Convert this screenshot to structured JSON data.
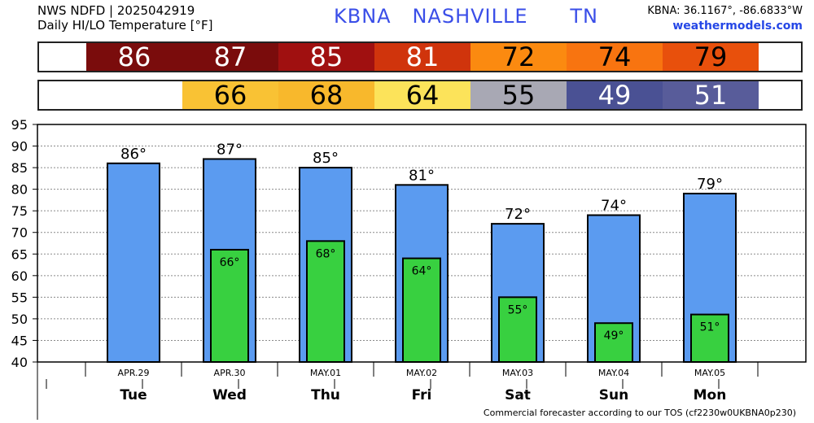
{
  "header": {
    "line1": "NWS NDFD | 2025042919",
    "line2": "Daily HI/LO Temperature [°F]",
    "station": "KBNA",
    "city": "NASHVILLE",
    "state": "TN",
    "coords": "KBNA: 36.1167°, -86.6833°W",
    "site": "weathermodels.com"
  },
  "hi_strip": [
    {
      "value": "86",
      "color": "#7a0c0c",
      "text_color": "#ffffff"
    },
    {
      "value": "87",
      "color": "#7a0c0c",
      "text_color": "#ffffff"
    },
    {
      "value": "85",
      "color": "#a01010",
      "text_color": "#ffffff"
    },
    {
      "value": "81",
      "color": "#d0340c",
      "text_color": "#ffffff"
    },
    {
      "value": "72",
      "color": "#fb8a10",
      "text_color": "#000000"
    },
    {
      "value": "74",
      "color": "#f87410",
      "text_color": "#000000"
    },
    {
      "value": "79",
      "color": "#e8500c",
      "text_color": "#000000"
    }
  ],
  "lo_strip": [
    {
      "value": "66",
      "color": "#f9c234",
      "text_color": "#000000"
    },
    {
      "value": "68",
      "color": "#f8b82c",
      "text_color": "#000000"
    },
    {
      "value": "64",
      "color": "#fce35a",
      "text_color": "#000000"
    },
    {
      "value": "55",
      "color": "#a8a8b4",
      "text_color": "#000000"
    },
    {
      "value": "49",
      "color": "#4a5194",
      "text_color": "#ffffff"
    },
    {
      "value": "51",
      "color": "#585c9a",
      "text_color": "#ffffff"
    }
  ],
  "chart_data": {
    "type": "bar",
    "dates": [
      "APR.29",
      "APR.30",
      "MAY.01",
      "MAY.02",
      "MAY.03",
      "MAY.04",
      "MAY.05"
    ],
    "days": [
      "Tue",
      "Wed",
      "Thu",
      "Fri",
      "Sat",
      "Sun",
      "Mon"
    ],
    "series": [
      {
        "values": [
          86,
          87,
          85,
          81,
          72,
          74,
          79
        ],
        "color": "#5b9bf0"
      },
      {
        "values": [
          null,
          66,
          68,
          64,
          55,
          49,
          51
        ],
        "color": "#38d040"
      }
    ],
    "ylim": [
      40,
      95
    ],
    "yticks": [
      "95",
      "90",
      "85",
      "80",
      "75",
      "70",
      "65",
      "60",
      "55",
      "50",
      "45",
      "40"
    ],
    "grid": true
  },
  "footer": "Commercial forecaster according to our TOS (cf2230w0UKBNA0p230)"
}
